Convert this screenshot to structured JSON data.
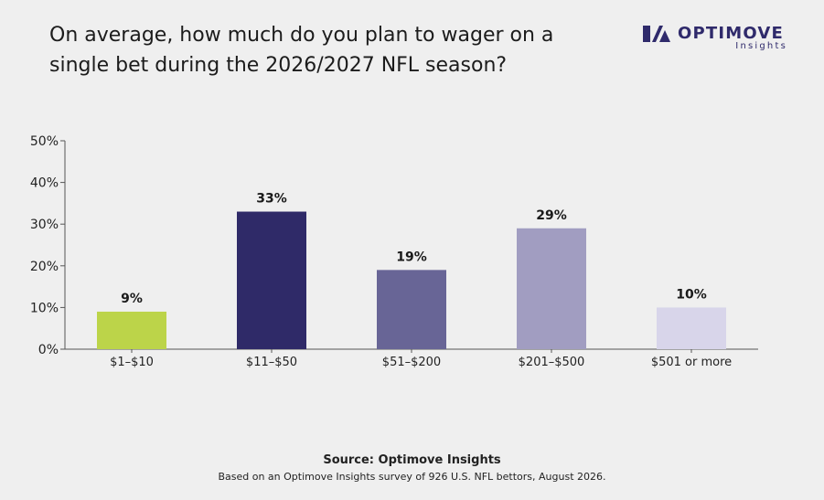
{
  "logo": {
    "wordmark": "OPTIMOVE",
    "sub": "Insights",
    "color": "#2f2a6b"
  },
  "chart_data": {
    "type": "bar",
    "title": "On average, how much do you plan to wager on a single bet during the 2026/2027 NFL season?",
    "categories": [
      "$1–$10",
      "$11–$50",
      "$51–$200",
      "$201–$500",
      "$501 or more"
    ],
    "values": [
      9,
      33,
      19,
      29,
      10
    ],
    "value_labels": [
      "9%",
      "33%",
      "19%",
      "29%",
      "10%"
    ],
    "colors": [
      "#bcd449",
      "#2f2a68",
      "#686596",
      "#a19dc1",
      "#d8d5ea"
    ],
    "ylim": [
      0,
      50
    ],
    "yticks": [
      0,
      10,
      20,
      30,
      40,
      50
    ],
    "ytick_labels": [
      "0%",
      "10%",
      "20%",
      "30%",
      "40%",
      "50%"
    ],
    "xlabel": "",
    "ylabel": "",
    "grid": false
  },
  "footer": {
    "source": "Source: Optimove Insights",
    "note": "Based on an Optimove Insights survey of 926 U.S. NFL bettors, August 2026."
  }
}
